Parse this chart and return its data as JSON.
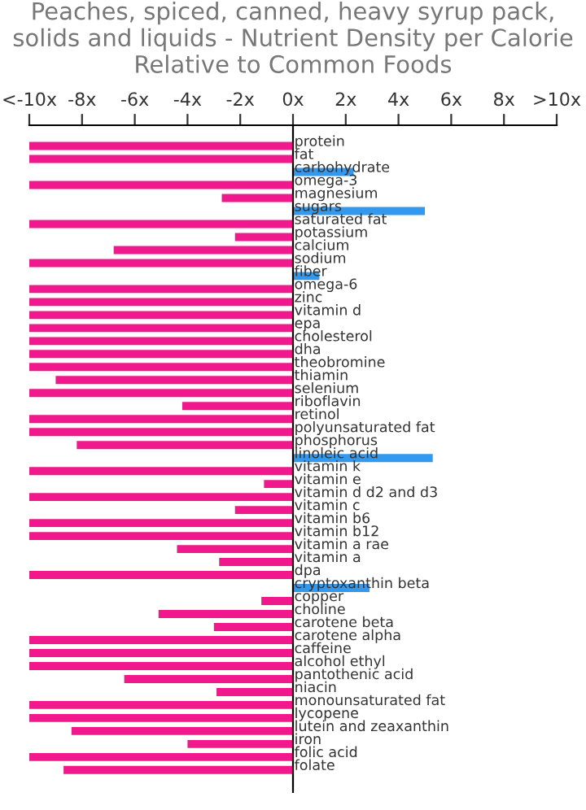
{
  "chart_data": {
    "type": "bar",
    "orientation": "horizontal",
    "title": "Peaches, spiced, canned, heavy syrup pack, solids and liquids - Nutrient Density per Calorie Relative to Common Foods",
    "categories": [
      "protein",
      "fat",
      "carbohydrate",
      "omega-3",
      "magnesium",
      "sugars",
      "saturated fat",
      "potassium",
      "calcium",
      "sodium",
      "fiber",
      "omega-6",
      "zinc",
      "vitamin d",
      "epa",
      "cholesterol",
      "dha",
      "theobromine",
      "thiamin",
      "selenium",
      "riboflavin",
      "retinol",
      "polyunsaturated fat",
      "phosphorus",
      "linoleic acid",
      "vitamin k",
      "vitamin e",
      "vitamin d d2 and d3",
      "vitamin c",
      "vitamin b6",
      "vitamin b12",
      "vitamin a rae",
      "vitamin a",
      "dpa",
      "cryptoxanthin beta",
      "copper",
      "choline",
      "carotene beta",
      "carotene alpha",
      "caffeine",
      "alcohol ethyl",
      "pantothenic acid",
      "niacin",
      "monounsaturated fat",
      "lycopene",
      "lutein and zeaxanthin",
      "iron",
      "folic acid",
      "folate"
    ],
    "values": [
      -10,
      -10,
      2.3,
      -10,
      -2.7,
      5.0,
      -10,
      -2.2,
      -6.8,
      -10,
      1.0,
      -10,
      -10,
      -10,
      -10,
      -10,
      -10,
      -10,
      -9.0,
      -10,
      -4.2,
      -10,
      -10,
      -8.2,
      5.3,
      -10,
      -1.1,
      -10,
      -2.2,
      -10,
      -10,
      -4.4,
      -2.8,
      -10,
      2.9,
      -1.2,
      -5.1,
      -3.0,
      -10,
      -10,
      -10,
      -6.4,
      -2.9,
      -10,
      -10,
      -8.4,
      -4.0,
      -10,
      -8.7
    ],
    "colors": [
      "#f0188c",
      "#f0188c",
      "#3399ee",
      "#f0188c",
      "#f0188c",
      "#3399ee",
      "#f0188c",
      "#f0188c",
      "#f0188c",
      "#f0188c",
      "#3399ee",
      "#f0188c",
      "#f0188c",
      "#f0188c",
      "#f0188c",
      "#f0188c",
      "#f0188c",
      "#f0188c",
      "#f0188c",
      "#f0188c",
      "#f0188c",
      "#f0188c",
      "#f0188c",
      "#f0188c",
      "#3399ee",
      "#f0188c",
      "#f0188c",
      "#f0188c",
      "#f0188c",
      "#f0188c",
      "#f0188c",
      "#f0188c",
      "#f0188c",
      "#f0188c",
      "#3399ee",
      "#f0188c",
      "#f0188c",
      "#f0188c",
      "#f0188c",
      "#f0188c",
      "#f0188c",
      "#f0188c",
      "#f0188c",
      "#f0188c",
      "#f0188c",
      "#f0188c",
      "#f0188c",
      "#f0188c",
      "#f0188c"
    ],
    "xlim": [
      -10,
      10
    ],
    "xticks": [
      {
        "value": -10,
        "label": "<-10x"
      },
      {
        "value": -8,
        "label": "-8x"
      },
      {
        "value": -6,
        "label": "-6x"
      },
      {
        "value": -4,
        "label": "-4x"
      },
      {
        "value": -2,
        "label": "-2x"
      },
      {
        "value": 0,
        "label": "0x"
      },
      {
        "value": 2,
        "label": "2x"
      },
      {
        "value": 4,
        "label": "4x"
      },
      {
        "value": 6,
        "label": "6x"
      },
      {
        "value": 8,
        "label": "8x"
      },
      {
        "value": 10,
        "label": ">10x"
      }
    ],
    "grid": false
  }
}
